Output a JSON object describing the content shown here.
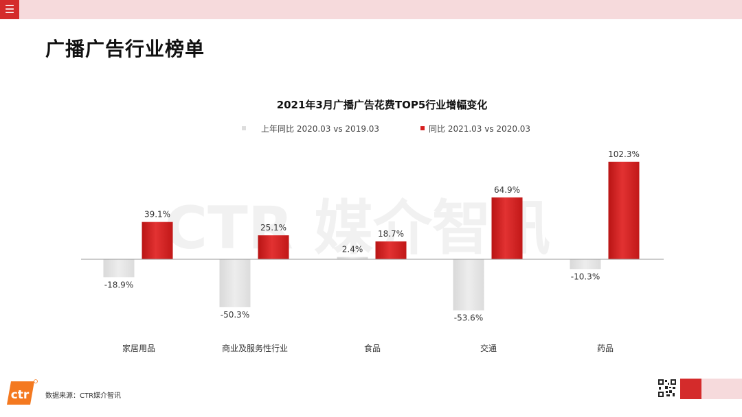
{
  "header": {
    "menu_icon": "hamburger-menu-icon",
    "title": "广播广告行业榜单"
  },
  "watermark": "CTR 媒介智讯",
  "chart_data": {
    "type": "bar",
    "title": "2021年3月广播广告花费TOP5行业增幅变化",
    "categories": [
      "家居用品",
      "商业及服务性行业",
      "食品",
      "交通",
      "药品"
    ],
    "series": [
      {
        "name": "上年同比 2020.03 vs 2019.03",
        "values": [
          -18.9,
          -50.3,
          2.4,
          -53.6,
          -10.3
        ],
        "labels": [
          "-18.9%",
          "-50.3%",
          "2.4%",
          "-53.6%",
          "-10.3%"
        ],
        "color": "#e6e6e6"
      },
      {
        "name": "同比 2021.03 vs 2020.03",
        "values": [
          39.1,
          25.1,
          18.7,
          64.9,
          102.3
        ],
        "labels": [
          "39.1%",
          "25.1%",
          "18.7%",
          "64.9%",
          "102.3%"
        ],
        "color": "#d71f1f"
      }
    ],
    "legend": "top",
    "grid": false
  },
  "footer": {
    "logo_text": "ctr",
    "source": "数据来源：CTR媒介智讯",
    "qr_icon": "qr-code-icon"
  },
  "colors": {
    "accent": "#d42b2b",
    "band": "#f6dadc",
    "logo_orange": "#f47920"
  }
}
